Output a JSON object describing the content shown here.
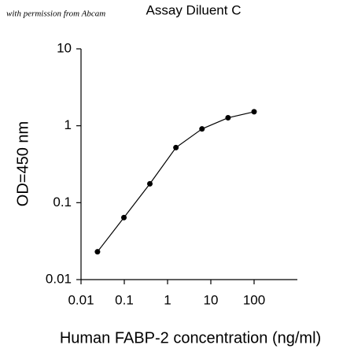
{
  "chart_data": {
    "type": "line",
    "watermark": "with permission from Abcam",
    "title": "Assay Diluent C",
    "x_label": "Human FABP-2 concentration (ng/ml)",
    "y_label": "OD=450 nm",
    "x": [
      0.024,
      0.098,
      0.39,
      1.56,
      6.25,
      25,
      100
    ],
    "series": [
      {
        "color": "#000000",
        "values": [
          0.023,
          0.064,
          0.176,
          0.52,
          0.91,
          1.27,
          1.52
        ]
      }
    ],
    "xscale": "log",
    "yscale": "log",
    "xlim": [
      0.01,
      1000
    ],
    "xticks": [
      0.01,
      0.1,
      1,
      10,
      100
    ],
    "ylim": [
      0.01,
      10
    ],
    "yticks": [
      0.01,
      0.1,
      1,
      10
    ],
    "grid": false
  }
}
